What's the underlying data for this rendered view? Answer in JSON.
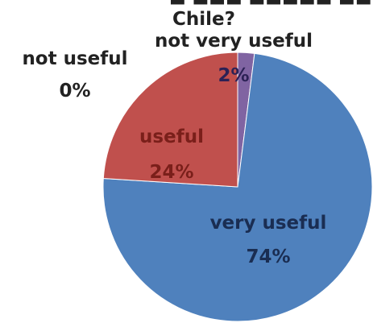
{
  "chart_data": {
    "type": "pie",
    "title": "Chile?",
    "slices": [
      {
        "label": "not useful",
        "value": 0,
        "value_label": "0%",
        "color": "#c0504d"
      },
      {
        "label": "not very useful",
        "value": 2,
        "value_label": "2%",
        "color": "#8064a2"
      },
      {
        "label": "very useful",
        "value": 74,
        "value_label": "74%",
        "color": "#4f81bd"
      },
      {
        "label": "useful",
        "value": 24,
        "value_label": "24%",
        "color": "#c0504d"
      }
    ],
    "label_colors": {
      "outside": "#222222",
      "inside_red": "#7a1f1a",
      "inside_blue": "#1a2d52",
      "inside_purple": "#2c2155"
    }
  }
}
